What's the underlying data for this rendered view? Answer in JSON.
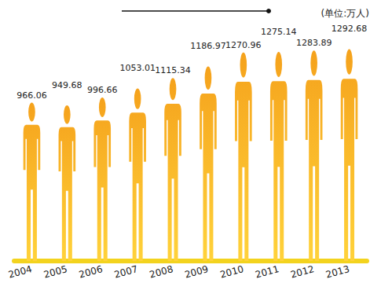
{
  "chart_data": {
    "type": "bar",
    "title": "(单位:万人)",
    "categories": [
      "2004",
      "2005",
      "2006",
      "2007",
      "2008",
      "2009",
      "2010",
      "2011",
      "2012",
      "2013"
    ],
    "values": [
      966.06,
      949.68,
      996.66,
      1053.01,
      1115.34,
      1186.97,
      1270.96,
      1275.14,
      1283.89,
      1292.68
    ],
    "color": "#f5a21c",
    "ylim": [
      0,
      1400
    ],
    "grid": false,
    "data_labels": true,
    "tick_labels": "x"
  }
}
